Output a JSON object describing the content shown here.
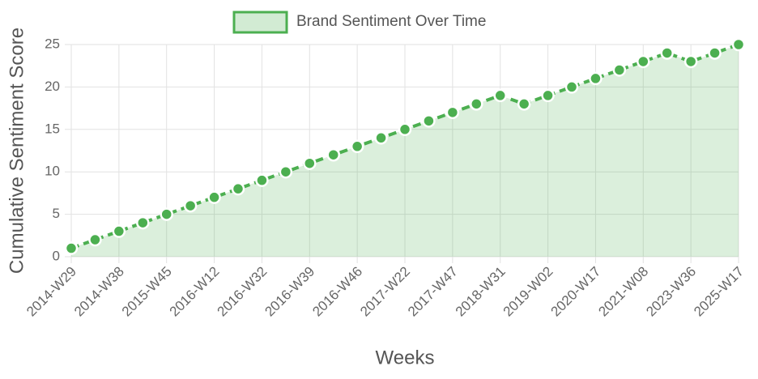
{
  "chart_data": {
    "type": "line",
    "x_label": "Weeks",
    "y_label": "Cumulative Sentiment Score",
    "categories": [
      "2014-W29",
      null,
      "2014-W38",
      null,
      "2015-W45",
      null,
      "2016-W12",
      null,
      "2016-W32",
      null,
      "2016-W39",
      null,
      "2016-W46",
      null,
      "2017-W22",
      null,
      "2017-W47",
      null,
      "2018-W31",
      null,
      "2019-W02",
      null,
      "2020-W17",
      null,
      "2021-W08",
      null,
      "2023-W36",
      null,
      "2025-W17"
    ],
    "series": [
      {
        "name": "Brand Sentiment Over Time",
        "color": "#4caf50",
        "values": [
          1,
          2,
          3,
          4,
          5,
          6,
          7,
          8,
          9,
          10,
          11,
          12,
          13,
          14,
          15,
          16,
          17,
          18,
          19,
          18,
          19,
          20,
          21,
          22,
          23,
          24,
          23,
          24,
          25
        ]
      }
    ],
    "ylim": [
      0,
      25
    ],
    "yticks": [
      0,
      5,
      10,
      15,
      20,
      25
    ],
    "grid": true,
    "legend": "top",
    "fill": true,
    "dashed": true
  }
}
